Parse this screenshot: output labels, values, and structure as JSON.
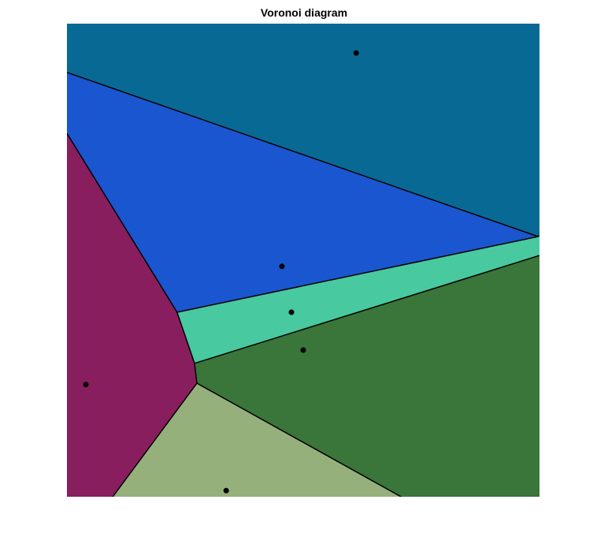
{
  "chart_data": {
    "type": "voronoi",
    "title": "Voronoi diagram",
    "xlabel": "",
    "ylabel": "",
    "xlim": [
      0,
      1
    ],
    "ylim": [
      0,
      1
    ],
    "axes_visible": false,
    "grid": false,
    "sites": [
      {
        "name": "site-1",
        "x": 0.612,
        "y": 0.938
      },
      {
        "name": "site-2",
        "x": 0.455,
        "y": 0.487
      },
      {
        "name": "site-3",
        "x": 0.475,
        "y": 0.39
      },
      {
        "name": "site-4",
        "x": 0.5,
        "y": 0.31
      },
      {
        "name": "site-5",
        "x": 0.04,
        "y": 0.237
      },
      {
        "name": "site-6",
        "x": 0.337,
        "y": 0.013
      }
    ],
    "cells": [
      {
        "site": "site-1",
        "color": "#086A94",
        "vertices": [
          [
            0,
            1
          ],
          [
            1,
            1
          ],
          [
            1,
            0.552
          ],
          [
            0.997,
            0.55
          ],
          [
            0,
            0.897
          ]
        ]
      },
      {
        "site": "site-2",
        "color": "#1A56D0",
        "vertices": [
          [
            0,
            0.897
          ],
          [
            0.997,
            0.55
          ],
          [
            0.233,
            0.39
          ],
          [
            0,
            0.768
          ]
        ]
      },
      {
        "site": "site-3",
        "color": "#48C9A0",
        "vertices": [
          [
            0.233,
            0.39
          ],
          [
            0.997,
            0.55
          ],
          [
            1,
            0.552
          ],
          [
            1,
            0.51
          ],
          [
            0.27,
            0.282
          ]
        ]
      },
      {
        "site": "site-4",
        "color": "#3A7539",
        "vertices": [
          [
            0.27,
            0.282
          ],
          [
            1,
            0.51
          ],
          [
            1,
            0
          ],
          [
            0.707,
            0
          ],
          [
            0.275,
            0.24
          ]
        ]
      },
      {
        "site": "site-5",
        "color": "#891E5E",
        "vertices": [
          [
            0,
            0
          ],
          [
            0.097,
            0
          ],
          [
            0.275,
            0.24
          ],
          [
            0.27,
            0.282
          ],
          [
            0.233,
            0.39
          ],
          [
            0,
            0.768
          ]
        ]
      },
      {
        "site": "site-6",
        "color": "#96B07B",
        "vertices": [
          [
            0.097,
            0
          ],
          [
            0.707,
            0
          ],
          [
            0.275,
            0.24
          ]
        ]
      }
    ],
    "edges": [
      [
        [
          0,
          0.897
        ],
        [
          0.997,
          0.55
        ]
      ],
      [
        [
          0.997,
          0.55
        ],
        [
          1,
          0.552
        ]
      ],
      [
        [
          0.997,
          0.55
        ],
        [
          0.233,
          0.39
        ]
      ],
      [
        [
          0.233,
          0.39
        ],
        [
          0,
          0.768
        ]
      ],
      [
        [
          0.233,
          0.39
        ],
        [
          0.27,
          0.282
        ]
      ],
      [
        [
          0.27,
          0.282
        ],
        [
          1,
          0.51
        ]
      ],
      [
        [
          0.27,
          0.282
        ],
        [
          0.275,
          0.24
        ]
      ],
      [
        [
          0.275,
          0.24
        ],
        [
          0.097,
          0
        ]
      ],
      [
        [
          0.275,
          0.24
        ],
        [
          0.707,
          0
        ]
      ]
    ],
    "site_color": "#000000",
    "edge_color": "#000000"
  }
}
